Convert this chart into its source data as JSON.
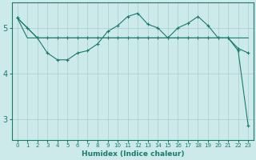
{
  "xlabel": "Humidex (Indice chaleur)",
  "bg_color": "#cceaea",
  "line_color": "#1a7a6e",
  "grid_color": "#aacccc",
  "x_ticks": [
    0,
    1,
    2,
    3,
    4,
    5,
    6,
    7,
    8,
    9,
    10,
    11,
    12,
    13,
    14,
    15,
    16,
    17,
    18,
    19,
    20,
    21,
    22,
    23
  ],
  "y_ticks": [
    3,
    4,
    5
  ],
  "ylim": [
    2.55,
    5.55
  ],
  "xlim": [
    -0.5,
    23.5
  ],
  "line1_x": [
    0,
    1,
    2,
    3,
    4,
    5,
    6,
    7,
    8,
    9,
    10,
    11,
    12,
    13,
    14,
    15,
    16,
    17,
    18,
    19,
    20,
    21,
    22,
    23
  ],
  "line1_y": [
    5.22,
    4.78,
    4.78,
    4.78,
    4.78,
    4.78,
    4.78,
    4.78,
    4.78,
    4.78,
    4.78,
    4.78,
    4.78,
    4.78,
    4.78,
    4.78,
    4.78,
    4.78,
    4.78,
    4.78,
    4.78,
    4.78,
    4.78,
    4.78
  ],
  "line2_x": [
    0,
    1,
    2,
    3,
    4,
    5,
    6,
    7,
    8,
    9,
    10,
    11,
    12,
    13,
    14,
    15,
    16,
    17,
    18,
    19,
    20,
    21,
    22,
    23
  ],
  "line2_y": [
    5.22,
    5.0,
    4.78,
    4.78,
    4.78,
    4.78,
    4.78,
    4.78,
    4.78,
    4.78,
    4.78,
    4.78,
    4.78,
    4.78,
    4.78,
    4.78,
    4.78,
    4.78,
    4.78,
    4.78,
    4.78,
    4.78,
    4.5,
    2.85
  ],
  "line3_x": [
    0,
    2,
    3,
    4,
    5,
    6,
    7,
    8,
    9,
    10,
    11,
    12,
    13,
    14,
    15,
    16,
    17,
    18,
    19,
    20,
    21,
    22,
    23
  ],
  "line3_y": [
    5.22,
    4.78,
    4.45,
    4.3,
    4.3,
    4.45,
    4.5,
    4.65,
    4.92,
    5.05,
    5.25,
    5.32,
    5.08,
    5.0,
    4.78,
    5.0,
    5.1,
    5.25,
    5.05,
    4.78,
    4.78,
    4.55,
    4.45
  ],
  "line1_marker": false,
  "line2_marker": true,
  "line3_marker": true,
  "font_color": "#1a7a6e"
}
